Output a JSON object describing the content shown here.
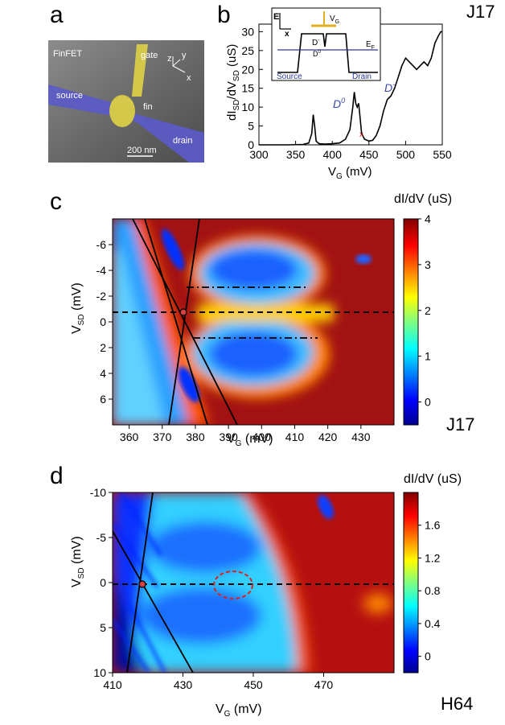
{
  "panels": {
    "a": {
      "label": "a",
      "texts": {
        "device": "FinFET",
        "gate": "gate",
        "source": "source",
        "fin": "fin",
        "drain": "drain",
        "scale": "200 nm",
        "ax_z": "z",
        "ax_y": "y",
        "ax_x": "x"
      }
    },
    "b": {
      "label": "b",
      "sample": "J17",
      "annotations": {
        "d0": "D",
        "d0_sup": "0",
        "dminus": "D",
        "dminus_sup": "-",
        "cross": "x"
      },
      "inset": {
        "e_axis": "E",
        "x_axis": "x",
        "vg": "V",
        "vg_sub": "G",
        "ef": "E",
        "ef_sub": "F",
        "source": "Source",
        "drain": "Drain",
        "dminus": "D",
        "dminus_sup": "-",
        "d0": "D",
        "d0_sup": "0"
      }
    },
    "c": {
      "label": "c",
      "sample": "J17",
      "colorbar_title": "dI/dV (uS)"
    },
    "d": {
      "label": "d",
      "sample": "H64",
      "colorbar_title": "dI/dV  (uS)"
    }
  },
  "chart_data": [
    {
      "panel": "b",
      "type": "line",
      "xlabel": "V",
      "xlabel_sub": "G",
      "xlabel_unit": " (mV)",
      "ylabel": "dI",
      "ylabel_sub1": "SD",
      "ylabel_mid": "/dV",
      "ylabel_sub2": "SD",
      "ylabel_unit": " (uS)",
      "xlim": [
        300,
        550
      ],
      "ylim": [
        0,
        32
      ],
      "xticks": [
        300,
        350,
        400,
        450,
        500,
        550
      ],
      "yticks": [
        0,
        5,
        10,
        15,
        20,
        25,
        30
      ],
      "x": [
        300,
        320,
        340,
        360,
        368,
        372,
        374,
        376,
        378,
        382,
        390,
        400,
        410,
        418,
        424,
        428,
        430,
        432,
        434,
        436,
        438,
        440,
        444,
        450,
        455,
        460,
        465,
        470,
        475,
        480,
        485,
        490,
        495,
        500,
        505,
        510,
        515,
        520,
        525,
        530,
        535,
        540,
        545,
        548,
        550
      ],
      "y": [
        0,
        0,
        0,
        0.1,
        0.5,
        3,
        8,
        5,
        1,
        0.3,
        0.2,
        0.3,
        0.5,
        1.5,
        4,
        10,
        14,
        11,
        10,
        11,
        7,
        3,
        1.5,
        1,
        1.2,
        2.5,
        5,
        9,
        12,
        13,
        15,
        18,
        21,
        23,
        22,
        21,
        20,
        21,
        22,
        21,
        23,
        27,
        29,
        30,
        30
      ]
    },
    {
      "panel": "c",
      "type": "heatmap",
      "xlabel": "V",
      "xlabel_sub": "G",
      "xlabel_unit": " (mV)",
      "ylabel": "V",
      "ylabel_sub": "SD",
      "ylabel_unit": " (mV)",
      "xlim": [
        355,
        440
      ],
      "ylim": [
        -8,
        8
      ],
      "xticks": [
        360,
        370,
        380,
        390,
        400,
        410,
        420,
        430
      ],
      "yticks": [
        -6,
        -4,
        -2,
        0,
        2,
        4,
        6
      ],
      "colorbar": {
        "min": -0.5,
        "max": 4,
        "ticks": [
          0,
          1,
          2,
          3,
          4
        ]
      }
    },
    {
      "panel": "d",
      "type": "heatmap",
      "xlabel": "V",
      "xlabel_sub": "G",
      "xlabel_unit": " (mV)",
      "ylabel": "V",
      "ylabel_sub": "SD",
      "ylabel_unit": " (mV)",
      "xlim": [
        410,
        490
      ],
      "ylim": [
        -10,
        10
      ],
      "xticks": [
        410,
        430,
        450,
        470
      ],
      "yticks": [
        -10,
        -5,
        0,
        5,
        10
      ],
      "colorbar": {
        "min": -0.2,
        "max": 2,
        "ticks": [
          0,
          0.4,
          0.8,
          1.2,
          1.6
        ]
      }
    }
  ]
}
